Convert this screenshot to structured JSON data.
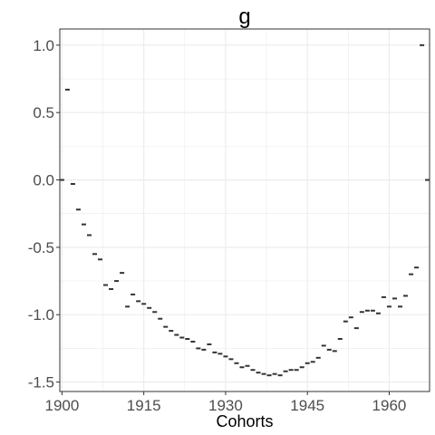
{
  "chart_data": {
    "type": "scatter",
    "title": "g",
    "xlabel": "Cohorts",
    "ylabel": "",
    "xlim": [
      1899.6,
      1967.4
    ],
    "ylim": [
      -1.57,
      1.12
    ],
    "xticks": [
      1900,
      1915,
      1930,
      1945,
      1960
    ],
    "xtick_labels": [
      "1900",
      "1915",
      "1930",
      "1945",
      "1960"
    ],
    "yticks": [
      1.0,
      0.5,
      0.0,
      -0.5,
      -1.0,
      -1.5
    ],
    "ytick_labels": [
      "1.0",
      "0.5",
      "0.0",
      "-0.5",
      "-1.0",
      "-1.5"
    ],
    "grid": true,
    "marker": "dash",
    "series": [
      {
        "x": [
          1900,
          1901,
          1902,
          1903,
          1904,
          1905,
          1906,
          1907,
          1908,
          1909,
          1910,
          1911,
          1912,
          1913,
          1914,
          1915,
          1916,
          1917,
          1918,
          1919,
          1920,
          1921,
          1922,
          1923,
          1924,
          1925,
          1926,
          1927,
          1928,
          1929,
          1930,
          1931,
          1932,
          1933,
          1934,
          1935,
          1936,
          1937,
          1938,
          1939,
          1940,
          1941,
          1942,
          1943,
          1944,
          1945,
          1946,
          1947,
          1948,
          1949,
          1950,
          1951,
          1952,
          1953,
          1954,
          1955,
          1956,
          1957,
          1958,
          1959,
          1960,
          1961,
          1962,
          1963,
          1964,
          1965,
          1966,
          1967
        ],
        "values": [
          0.0,
          0.67,
          -0.03,
          -0.22,
          -0.33,
          -0.41,
          -0.55,
          -0.59,
          -0.78,
          -0.81,
          -0.75,
          -0.69,
          -0.94,
          -0.85,
          -0.9,
          -0.92,
          -0.95,
          -0.98,
          -1.03,
          -1.09,
          -1.12,
          -1.15,
          -1.17,
          -1.18,
          -1.2,
          -1.25,
          -1.26,
          -1.22,
          -1.28,
          -1.29,
          -1.31,
          -1.33,
          -1.36,
          -1.39,
          -1.38,
          -1.41,
          -1.43,
          -1.44,
          -1.45,
          -1.44,
          -1.45,
          -1.42,
          -1.41,
          -1.41,
          -1.39,
          -1.36,
          -1.35,
          -1.32,
          -1.23,
          -1.26,
          -1.27,
          -1.18,
          -1.05,
          -1.02,
          -1.1,
          -0.98,
          -0.97,
          -0.97,
          -0.99,
          -0.87,
          -0.94,
          -0.88,
          -0.94,
          -0.86,
          -0.7,
          -0.65,
          1.0,
          0.0
        ]
      }
    ],
    "colors": {
      "point": "#333333",
      "grid": "#ebebeb",
      "panel_border": "#333333",
      "background": "#ffffff"
    }
  }
}
